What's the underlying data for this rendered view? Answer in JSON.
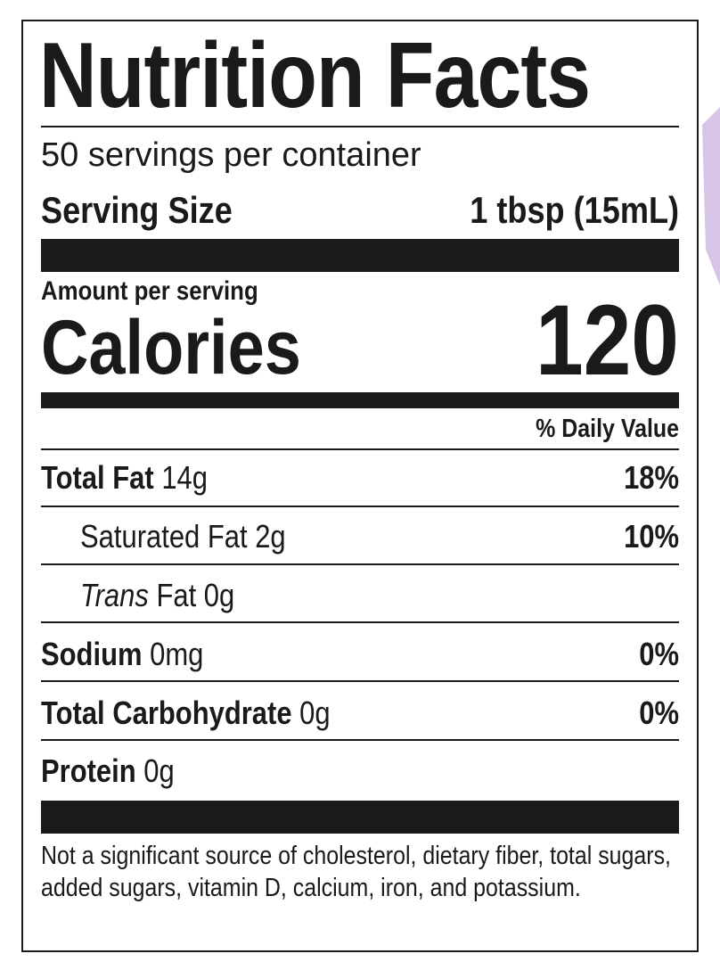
{
  "header": {
    "title": "Nutrition Facts",
    "servings": "50 servings per container",
    "serving_size_label": "Serving Size",
    "serving_size_value": "1 tbsp (15mL)"
  },
  "calories": {
    "amount_label": "Amount per serving",
    "label": "Calories",
    "value": "120"
  },
  "daily_value_header": "% Daily Value",
  "nutrients": [
    {
      "name": "Total Fat",
      "amount": "14g",
      "dv": "18%"
    },
    {
      "name": "Saturated Fat 2g",
      "dv": "10%"
    },
    {
      "prefix": "Trans",
      "name": "Fat 0g"
    },
    {
      "name": "Sodium",
      "amount": "0mg",
      "dv": "0%"
    },
    {
      "name": "Total Carbohydrate",
      "amount": "0g",
      "dv": "0%"
    },
    {
      "name": "Protein",
      "amount": "0g"
    }
  ],
  "footnote": "Not a significant source of cholesterol, dietary fiber, total sugars, added sugars, vitamin D, calcium, iron, and potassium."
}
